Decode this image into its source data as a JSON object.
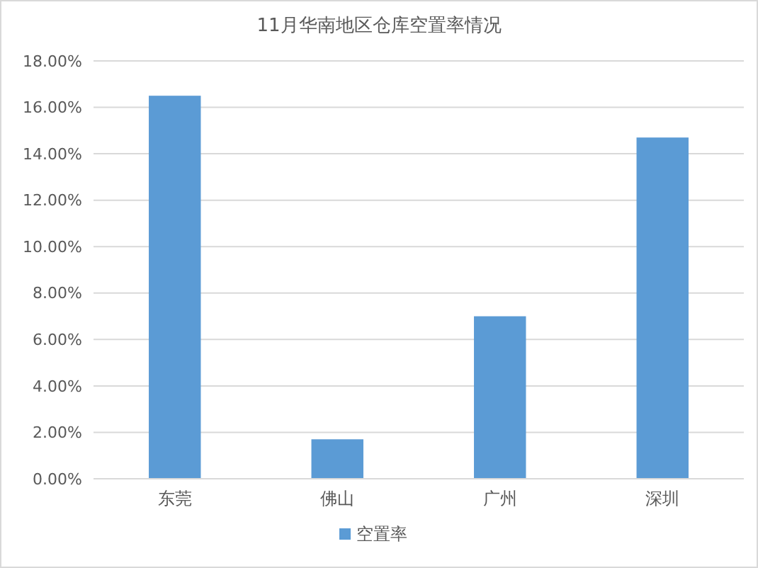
{
  "chart_data": {
    "type": "bar",
    "title": "11月华南地区仓库空置率情况",
    "categories": [
      "东莞",
      "佛山",
      "广州",
      "深圳"
    ],
    "series": [
      {
        "name": "空置率",
        "color": "#5b9bd5",
        "values": [
          16.5,
          1.7,
          7.0,
          14.7
        ]
      }
    ],
    "ylim": [
      0,
      18
    ],
    "yticks": [
      {
        "value": 0,
        "label": "0.00%"
      },
      {
        "value": 2,
        "label": "2.00%"
      },
      {
        "value": 4,
        "label": "4.00%"
      },
      {
        "value": 6,
        "label": "6.00%"
      },
      {
        "value": 8,
        "label": "8.00%"
      },
      {
        "value": 10,
        "label": "10.00%"
      },
      {
        "value": 12,
        "label": "12.00%"
      },
      {
        "value": 14,
        "label": "14.00%"
      },
      {
        "value": 16,
        "label": "16.00%"
      },
      {
        "value": 18,
        "label": "18.00%"
      }
    ],
    "grid": "y",
    "legend": "bottom"
  }
}
